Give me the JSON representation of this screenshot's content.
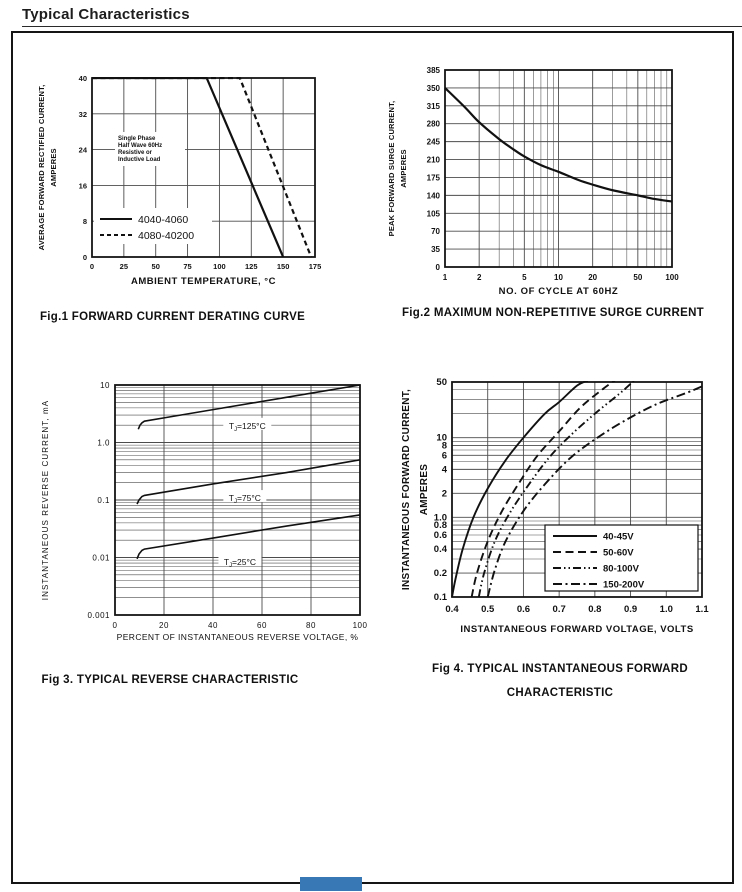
{
  "page": {
    "title": "Typical Characteristics"
  },
  "bottom_marker": {
    "color": "#3878b4"
  },
  "chart_data": [
    {
      "id": "fig1",
      "type": "line",
      "caption": "Fig.1 FORWARD CURRENT DERATING CURVE",
      "x_axis": {
        "label": "AMBIENT TEMPERATURE, °C",
        "scale": "linear",
        "min": 0,
        "max": 175,
        "tick_values": [
          0,
          25,
          50,
          75,
          100,
          125,
          150,
          175
        ],
        "tick_labels": [
          "0",
          "25",
          "50",
          "75",
          "100",
          "125",
          "150",
          "175"
        ]
      },
      "y_axis": {
        "label_lines": [
          "AVERAGE FORWARD RECTIFIED CURRENT,",
          "AMPERES"
        ],
        "scale": "linear",
        "min": 0,
        "max": 40,
        "tick_values": [
          0,
          8,
          16,
          24,
          32,
          40
        ],
        "tick_labels": [
          "0",
          "8",
          "16",
          "24",
          "32",
          "40"
        ]
      },
      "annotation_lines": [
        "Single Phase",
        "Half Wave 60Hz",
        "Resistive or",
        "Inductive Load"
      ],
      "legend": {
        "position": "inside-bottom-left"
      },
      "series": [
        {
          "name": "4040-4060",
          "style": "solid",
          "points": [
            [
              0,
              40
            ],
            [
              90,
              40
            ],
            [
              150,
              0
            ]
          ]
        },
        {
          "name": "4080-40200",
          "style": "dashed-short",
          "points": [
            [
              0,
              40
            ],
            [
              116,
              40
            ],
            [
              172,
              0
            ]
          ]
        }
      ]
    },
    {
      "id": "fig2",
      "type": "line",
      "caption": "Fig.2 MAXIMUM NON-REPETITIVE SURGE CURRENT",
      "x_axis": {
        "label": "NO. OF CYCLE AT 60HZ",
        "scale": "log",
        "min": 1,
        "max": 100,
        "tick_values": [
          1,
          2,
          5,
          10,
          20,
          50,
          100
        ],
        "tick_labels": [
          "1",
          "2",
          "5",
          "10",
          "20",
          "50",
          "100"
        ]
      },
      "y_axis": {
        "label_lines": [
          "PEAK FORWARD SURGE CURRENT,",
          "AMPERES"
        ],
        "scale": "linear",
        "min": 0,
        "max": 385,
        "tick_values": [
          0,
          35,
          70,
          105,
          140,
          175,
          210,
          245,
          280,
          315,
          350,
          385
        ],
        "tick_labels": [
          "0",
          "35",
          "70",
          "105",
          "140",
          "175",
          "210",
          "245",
          "280",
          "315",
          "350",
          "385"
        ]
      },
      "series": [
        {
          "name": "surge-current",
          "style": "solid",
          "points": [
            [
              1,
              350
            ],
            [
              1.5,
              312
            ],
            [
              2,
              283
            ],
            [
              3,
              250
            ],
            [
              4,
              230
            ],
            [
              5,
              216
            ],
            [
              7,
              199
            ],
            [
              10,
              186
            ],
            [
              15,
              170
            ],
            [
              20,
              161
            ],
            [
              30,
              150
            ],
            [
              50,
              140
            ],
            [
              70,
              133
            ],
            [
              100,
              128
            ]
          ]
        }
      ]
    },
    {
      "id": "fig3",
      "type": "line",
      "caption": "Fig 3. TYPICAL REVERSE CHARACTERISTIC",
      "x_axis": {
        "label": "PERCENT OF INSTANTANEOUS REVERSE VOLTAGE, %",
        "scale": "linear",
        "min": 0,
        "max": 100,
        "tick_values": [
          0,
          20,
          40,
          60,
          80,
          100
        ],
        "tick_labels": [
          "0",
          "20",
          "40",
          "60",
          "80",
          "100"
        ]
      },
      "y_axis": {
        "label_lines": [
          "INSTANTANEOUS  REVERSE  CURRENT, mA"
        ],
        "scale": "log",
        "min": 0.001,
        "max": 10,
        "tick_values": [
          0.001,
          0.01,
          0.1,
          1,
          10
        ],
        "tick_labels": [
          "0.001",
          "0.01",
          "0.1",
          "1.0",
          "10"
        ]
      },
      "curve_labels": [
        {
          "pre": "T",
          "sub": "J",
          "post": "=125°C"
        },
        {
          "pre": "T",
          "sub": "J",
          "post": "=75°C"
        },
        {
          "pre": "T",
          "sub": "J",
          "post": "=25°C"
        }
      ],
      "series": [
        {
          "name": "Tj=125C",
          "style": "solid",
          "points": [
            [
              9.5,
              1.7
            ],
            [
              10.2,
              2.0
            ],
            [
              11,
              2.2
            ],
            [
              12,
              2.35
            ],
            [
              20,
              2.68
            ],
            [
              40,
              3.73
            ],
            [
              60,
              5.18
            ],
            [
              80,
              7.2
            ],
            [
              100,
              10
            ]
          ]
        },
        {
          "name": "Tj=75C",
          "style": "solid",
          "points": [
            [
              9,
              0.085
            ],
            [
              9.8,
              0.1
            ],
            [
              11,
              0.115
            ],
            [
              12,
              0.12
            ],
            [
              40,
              0.19
            ],
            [
              70,
              0.3
            ],
            [
              100,
              0.5
            ]
          ]
        },
        {
          "name": "Tj=25C",
          "style": "solid",
          "points": [
            [
              9,
              0.0095
            ],
            [
              9.8,
              0.0115
            ],
            [
              11,
              0.0133
            ],
            [
              12,
              0.014
            ],
            [
              40,
              0.0218
            ],
            [
              70,
              0.0352
            ],
            [
              100,
              0.055
            ]
          ]
        }
      ]
    },
    {
      "id": "fig4",
      "type": "line",
      "caption_lines": [
        "Fig 4. TYPICAL INSTANTANEOUS FORWARD",
        "CHARACTERISTIC"
      ],
      "x_axis": {
        "label": "INSTANTANEOUS FORWARD VOLTAGE, VOLTS",
        "scale": "linear",
        "min": 0.4,
        "max": 1.1,
        "tick_values": [
          0.4,
          0.5,
          0.6,
          0.7,
          0.8,
          0.9,
          1.0,
          1.1
        ],
        "tick_labels": [
          "0.4",
          "0.5",
          "0.6",
          "0.7",
          "0.8",
          "0.9",
          "1.0",
          "1.1"
        ]
      },
      "y_axis": {
        "label_lines": [
          "INSTANTANEOUS FORWARD CURRENT,",
          "AMPERES"
        ],
        "scale": "log",
        "min": 0.1,
        "max": 50,
        "tick_values": [
          0.1,
          0.2,
          0.4,
          0.6,
          0.8,
          1,
          2,
          4,
          6,
          8,
          10,
          50
        ],
        "tick_labels": [
          "0.1",
          "0.2",
          "0.4",
          "0.6",
          "0.8",
          "1.0",
          "2",
          "4",
          "6",
          "8",
          "10",
          "50"
        ]
      },
      "legend": {
        "position": "inside-bottom-right-box"
      },
      "series": [
        {
          "name": "40-45V",
          "style": "solid",
          "points": [
            [
              0.4,
              0.1
            ],
            [
              0.41,
              0.17
            ],
            [
              0.43,
              0.4
            ],
            [
              0.46,
              1.0
            ],
            [
              0.5,
              2.3
            ],
            [
              0.55,
              5.2
            ],
            [
              0.6,
              10
            ],
            [
              0.66,
              20
            ],
            [
              0.7,
              28
            ],
            [
              0.75,
              45
            ],
            [
              0.78,
              52
            ]
          ]
        },
        {
          "name": "50-60V",
          "style": "dashed",
          "points": [
            [
              0.455,
              0.1
            ],
            [
              0.47,
              0.2
            ],
            [
              0.5,
              0.5
            ],
            [
              0.54,
              1.2
            ],
            [
              0.59,
              2.8
            ],
            [
              0.64,
              6
            ],
            [
              0.7,
              12
            ],
            [
              0.76,
              24
            ],
            [
              0.82,
              40
            ],
            [
              0.86,
              54
            ]
          ]
        },
        {
          "name": "80-100V",
          "style": "dash-dot-dot",
          "points": [
            [
              0.475,
              0.1
            ],
            [
              0.49,
              0.2
            ],
            [
              0.52,
              0.5
            ],
            [
              0.56,
              1.1
            ],
            [
              0.61,
              2.4
            ],
            [
              0.67,
              5.5
            ],
            [
              0.73,
              10.5
            ],
            [
              0.8,
              20
            ],
            [
              0.87,
              36
            ],
            [
              0.91,
              52
            ]
          ]
        },
        {
          "name": "150-200V",
          "style": "dash-dot",
          "points": [
            [
              0.5,
              0.1
            ],
            [
              0.52,
              0.22
            ],
            [
              0.55,
              0.5
            ],
            [
              0.6,
              1.2
            ],
            [
              0.66,
              2.6
            ],
            [
              0.73,
              5.5
            ],
            [
              0.8,
              9.5
            ],
            [
              0.88,
              16
            ],
            [
              0.97,
              26
            ],
            [
              1.06,
              37
            ],
            [
              1.1,
              44
            ]
          ]
        }
      ]
    }
  ]
}
